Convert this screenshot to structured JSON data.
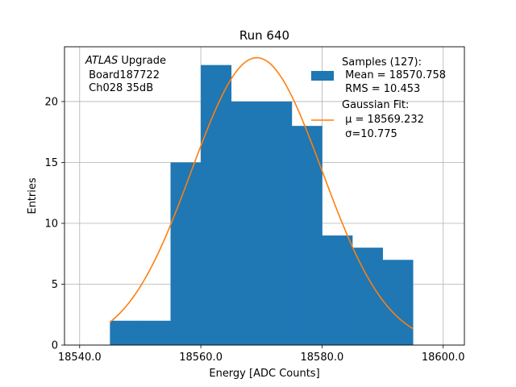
{
  "chart_data": {
    "type": "bar",
    "title": "Run 640",
    "xlabel": "Energy [ADC Counts]",
    "ylabel": "Entries",
    "xlim": [
      18537.5,
      18603.5
    ],
    "ylim": [
      0,
      24.5
    ],
    "grid": true,
    "x_ticks": [
      18540.0,
      18560.0,
      18580.0,
      18600.0
    ],
    "x_tick_labels": [
      "18540.0",
      "18560.0",
      "18580.0",
      "18600.0"
    ],
    "y_ticks": [
      0,
      5,
      10,
      15,
      20
    ],
    "y_tick_labels": [
      "0",
      "5",
      "10",
      "15",
      "20"
    ],
    "bin_edges": [
      18545,
      18550,
      18555,
      18560,
      18565,
      18570,
      18575,
      18580,
      18585,
      18590,
      18595
    ],
    "values": [
      2,
      2,
      15,
      23,
      20,
      20,
      18,
      9,
      8,
      7
    ],
    "series": [
      {
        "name": "Samples (127):",
        "name_line2": " Mean = 18570.758",
        "name_line3": " RMS = 10.453",
        "color": "#1f77b4"
      },
      {
        "name": "Gaussian Fit:",
        "name_line2": " μ = 18569.232",
        "name_line3": " σ=10.775",
        "color": "#ff7f0e",
        "fit": {
          "mu": 18569.232,
          "sigma": 10.775,
          "amplitude": 23.6,
          "x_range": [
            18545,
            18595
          ]
        }
      }
    ],
    "legend_position": "top-right",
    "annotation": {
      "italic": "ATLAS",
      "rest": " Upgrade",
      "line2": " Board187722",
      "line3": " Ch028 35dB"
    }
  }
}
